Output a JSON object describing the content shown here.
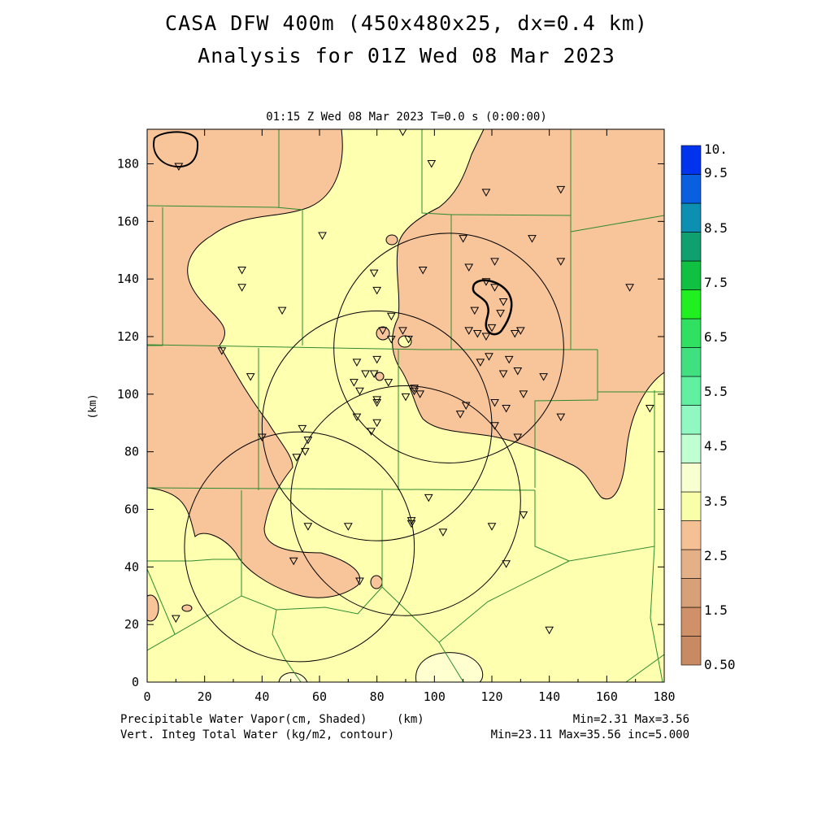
{
  "title_line1": "CASA DFW 400m (450x480x25, dx=0.4 km)",
  "title_line2": "Analysis for 01Z Wed 08 Mar 2023",
  "subtitle": "01:15 Z Wed 08 Mar 2023    T=0.0 s (0:00:00)",
  "axes": {
    "x_ticks": [
      "0",
      "20",
      "40",
      "60",
      "80",
      "100",
      "120",
      "140",
      "160",
      "180"
    ],
    "y_ticks": [
      "0",
      "20",
      "40",
      "60",
      "80",
      "100",
      "120",
      "140",
      "160",
      "180"
    ],
    "x_range": [
      0,
      180
    ],
    "y_range": [
      0,
      192
    ],
    "y_label": "(km)",
    "x_label": "(km)"
  },
  "colorbar": {
    "labels": [
      "10.",
      "9.5",
      "8.5",
      "7.5",
      "6.5",
      "5.5",
      "4.5",
      "3.5",
      "2.5",
      "1.5",
      "0.50"
    ],
    "colors": [
      "#0033ee",
      "#0a5fe0",
      "#0c8fb0",
      "#10a070",
      "#10c040",
      "#20f020",
      "#30e060",
      "#40e080",
      "#60f0a0",
      "#90f8c0",
      "#c0ffd0",
      "#f8ffd0",
      "#f8ffa8",
      "#f4c094",
      "#e4b088",
      "#d8a078",
      "#d09068",
      "#c88a60"
    ]
  },
  "footer": {
    "left1": "Precipitable Water Vapor(cm, Shaded)",
    "left1_unit": "(km)",
    "left2": "Vert. Integ Total Water (kg/m2, contour)",
    "right1": "Min=2.31 Max=3.56",
    "right2": "Min=23.11 Max=35.56 inc=5.000"
  },
  "map_colors": {
    "low_pw": "#f8c49a",
    "mid_pw": "#ffffb0",
    "light_pw": "#ffffd0",
    "county_lines": "#2e8b2e"
  },
  "radars": [
    {
      "x": 105,
      "y": 116,
      "r_km": 40
    },
    {
      "x": 80,
      "y": 89,
      "r_km": 40
    },
    {
      "x": 90,
      "y": 63,
      "r_km": 40
    },
    {
      "x": 53,
      "y": 47,
      "r_km": 40
    }
  ],
  "stations": [
    [
      11,
      179
    ],
    [
      33,
      143
    ],
    [
      33,
      137
    ],
    [
      47,
      129
    ],
    [
      26,
      115
    ],
    [
      36,
      106
    ],
    [
      61,
      155
    ],
    [
      79,
      142
    ],
    [
      80,
      136
    ],
    [
      85,
      127
    ],
    [
      82,
      122
    ],
    [
      85,
      119
    ],
    [
      89,
      122
    ],
    [
      91,
      119
    ],
    [
      80,
      112
    ],
    [
      79,
      107
    ],
    [
      73,
      111
    ],
    [
      76,
      107
    ],
    [
      72,
      104
    ],
    [
      74,
      101
    ],
    [
      84,
      104
    ],
    [
      80,
      98
    ],
    [
      80,
      97
    ],
    [
      90,
      99
    ],
    [
      93,
      101
    ],
    [
      95,
      100
    ],
    [
      93,
      102
    ],
    [
      80,
      90
    ],
    [
      78,
      87
    ],
    [
      73,
      92
    ],
    [
      56,
      84
    ],
    [
      54,
      88
    ],
    [
      55,
      80
    ],
    [
      52,
      78
    ],
    [
      40,
      85
    ],
    [
      56,
      54
    ],
    [
      70,
      54
    ],
    [
      92,
      56
    ],
    [
      92,
      55
    ],
    [
      98,
      64
    ],
    [
      103,
      52
    ],
    [
      120,
      54
    ],
    [
      131,
      58
    ],
    [
      125,
      41
    ],
    [
      140,
      18
    ],
    [
      10,
      22
    ],
    [
      51,
      42
    ],
    [
      74,
      35
    ],
    [
      89,
      191
    ],
    [
      99,
      180
    ],
    [
      118,
      170
    ],
    [
      144,
      171
    ],
    [
      134,
      154
    ],
    [
      144,
      146
    ],
    [
      121,
      146
    ],
    [
      112,
      144
    ],
    [
      96,
      143
    ],
    [
      110,
      154
    ],
    [
      168,
      137
    ],
    [
      118,
      139
    ],
    [
      121,
      137
    ],
    [
      124,
      132
    ],
    [
      123,
      128
    ],
    [
      114,
      129
    ],
    [
      112,
      122
    ],
    [
      115,
      121
    ],
    [
      118,
      120
    ],
    [
      120,
      123
    ],
    [
      128,
      121
    ],
    [
      130,
      122
    ],
    [
      126,
      112
    ],
    [
      119,
      113
    ],
    [
      116,
      111
    ],
    [
      121,
      97
    ],
    [
      124,
      107
    ],
    [
      129,
      108
    ],
    [
      138,
      106
    ],
    [
      131,
      100
    ],
    [
      125,
      95
    ],
    [
      111,
      96
    ],
    [
      109,
      93
    ],
    [
      121,
      89
    ],
    [
      129,
      85
    ],
    [
      144,
      92
    ],
    [
      175,
      95
    ]
  ]
}
